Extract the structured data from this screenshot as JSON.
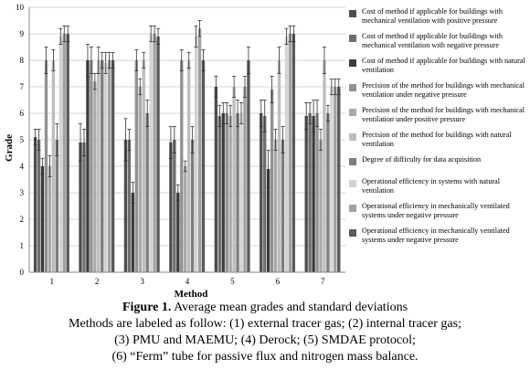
{
  "chart_data": {
    "type": "bar",
    "xlabel": "Method",
    "ylabel": "Grade",
    "ylim": [
      0,
      10
    ],
    "yticks": [
      0,
      1,
      2,
      3,
      4,
      5,
      6,
      7,
      8,
      9,
      10
    ],
    "categories": [
      "1",
      "2",
      "3",
      "4",
      "5",
      "6",
      "7"
    ],
    "grid": true,
    "legend_position": "right",
    "series": [
      {
        "name": "Cost of method if applicable for buildings with mechanical ventilation with positive pressure",
        "color": "#4d4d4d",
        "values": [
          5.1,
          4.9,
          5.0,
          4.9,
          7.0,
          6.0,
          5.9
        ],
        "errors": [
          0.3,
          0.7,
          0.8,
          0.6,
          0.4,
          0.5,
          0.5
        ]
      },
      {
        "name": "Cost of method if applicable for buildings with mechanical ventilation with negative pressure",
        "color": "#6e6e6e",
        "values": [
          5.0,
          4.9,
          5.0,
          5.0,
          5.9,
          5.9,
          6.0
        ],
        "errors": [
          0.4,
          0.5,
          0.4,
          0.5,
          0.4,
          0.6,
          0.4
        ]
      },
      {
        "name": "Cost of method if applicable for buildings with natural ventilation",
        "color": "#3c3c3c",
        "values": [
          4.0,
          8.0,
          3.0,
          3.0,
          6.0,
          3.9,
          5.9
        ],
        "errors": [
          0.3,
          0.6,
          0.4,
          0.3,
          0.4,
          0.7,
          0.6
        ]
      },
      {
        "name": "Precision of the method for buildings with mechanical ventilation under negative pressure",
        "color": "#929292",
        "values": [
          8.0,
          8.0,
          8.0,
          8.0,
          6.0,
          6.9,
          6.0
        ],
        "errors": [
          0.5,
          0.5,
          0.4,
          0.4,
          0.4,
          0.5,
          0.5
        ]
      },
      {
        "name": "Precision of the method for buildings with mechanical ventilation under positive pressure",
        "color": "#a9a9a9",
        "values": [
          4.0,
          7.2,
          7.0,
          4.0,
          5.9,
          5.0,
          5.0
        ],
        "errors": [
          0.4,
          0.3,
          0.3,
          0.2,
          0.4,
          0.4,
          0.4
        ]
      },
      {
        "name": "Precision of the method for buildings with natural ventilation",
        "color": "#bdbdbd",
        "values": [
          8.0,
          8.0,
          8.0,
          8.0,
          7.0,
          8.0,
          8.0
        ],
        "errors": [
          0.4,
          0.5,
          0.3,
          0.3,
          0.4,
          0.5,
          0.5
        ]
      },
      {
        "name": "Degree of difficulty for data acquisition",
        "color": "#7d7d7d",
        "values": [
          5.0,
          8.0,
          6.0,
          5.0,
          6.0,
          5.0,
          6.0
        ],
        "errors": [
          0.6,
          0.3,
          0.5,
          0.5,
          0.5,
          0.5,
          0.3
        ]
      },
      {
        "name": "Operational efficiency in systems with natural ventilation",
        "color": "#d3d3d3",
        "values": [
          8.9,
          7.9,
          9.0,
          8.9,
          6.0,
          8.9,
          7.0
        ],
        "errors": [
          0.3,
          0.4,
          0.3,
          0.4,
          0.4,
          0.3,
          0.3
        ]
      },
      {
        "name": "Operational efficiency in mechanically ventilated systems under negative pressure",
        "color": "#a1a1a1",
        "values": [
          9.0,
          8.0,
          9.0,
          9.2,
          7.0,
          9.0,
          7.0
        ],
        "errors": [
          0.3,
          0.3,
          0.3,
          0.3,
          0.4,
          0.3,
          0.3
        ]
      },
      {
        "name": "Operational efficiency in mechanically ventilated systems under negative pressure",
        "color": "#595959",
        "values": [
          9.0,
          8.0,
          8.9,
          8.0,
          8.0,
          9.0,
          7.0
        ],
        "errors": [
          0.3,
          0.3,
          0.3,
          0.4,
          0.5,
          0.3,
          0.3
        ]
      }
    ]
  },
  "caption": {
    "label": "Figure 1.",
    "title": "Average mean grades and standard deviations",
    "line2": "Methods are labeled as follow: (1) external tracer gas; (2) internal tracer gas;",
    "line3": "(3) PMU and MAEMU; (4) Derock; (5) SMDAE protocol;",
    "line4": "(6) “Ferm” tube for passive flux and nitrogen mass balance."
  }
}
